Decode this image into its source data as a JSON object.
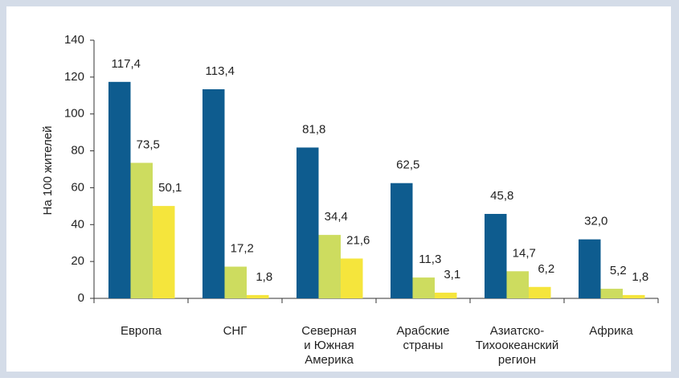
{
  "chart_data": {
    "type": "bar",
    "ylabel": "На 100 жителей",
    "categories": [
      "Европа",
      "СНГ",
      "Северная\nи Южная\nАмерика",
      "Арабские\nстраны",
      "Азиатско-\nТихоокеанский\nрегион",
      "Африка"
    ],
    "series": [
      {
        "color": "#0e5c8f",
        "values": [
          117.4,
          113.4,
          81.8,
          62.5,
          45.8,
          32.0
        ],
        "value_labels": [
          "117,4",
          "113,4",
          "81,8",
          "62,5",
          "45,8",
          "32,0"
        ]
      },
      {
        "color": "#cddc5f",
        "values": [
          73.5,
          17.2,
          34.4,
          11.3,
          14.7,
          5.2
        ],
        "value_labels": [
          "73,5",
          "17,2",
          "34,4",
          "11,3",
          "14,7",
          "5,2"
        ]
      },
      {
        "color": "#f5e53c",
        "values": [
          50.1,
          1.8,
          21.6,
          3.1,
          6.2,
          1.8
        ],
        "value_labels": [
          "50,1",
          "1,8",
          "21,6",
          "3,1",
          "6,2",
          "1,8"
        ]
      }
    ],
    "ylim": [
      0,
      140
    ],
    "yticks": [
      0,
      20,
      40,
      60,
      80,
      100,
      120,
      140
    ]
  }
}
